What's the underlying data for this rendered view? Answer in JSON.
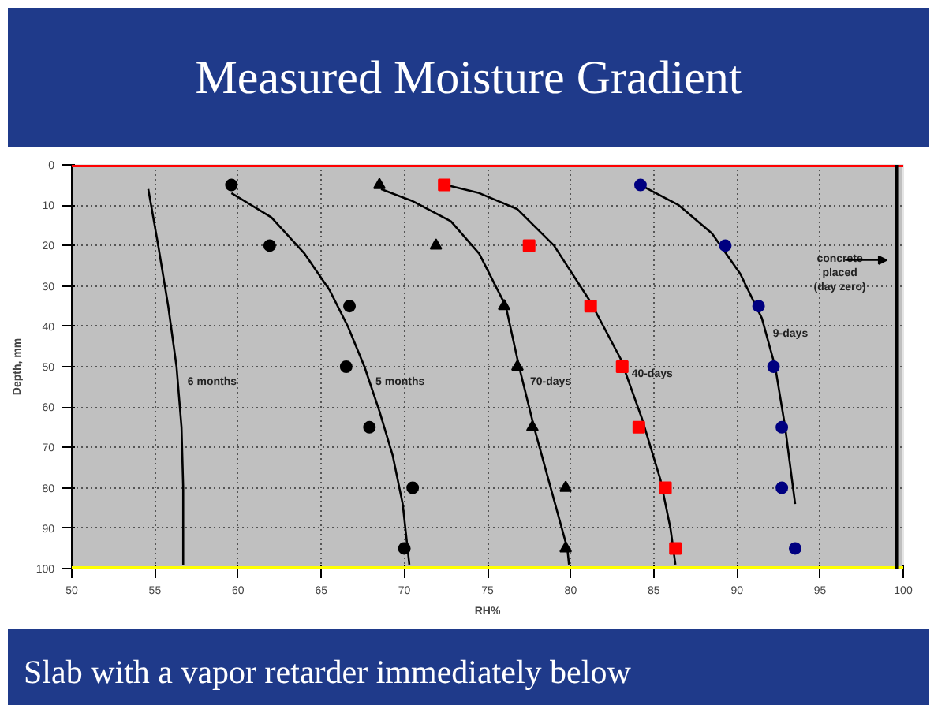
{
  "chart_data": {
    "type": "scatter",
    "title": "Measured Moisture Gradient",
    "xlabel": "RH%",
    "ylabel": "Depth, mm",
    "xlim": [
      50,
      100
    ],
    "ylim": [
      100,
      0
    ],
    "xticks": [
      50,
      55,
      60,
      65,
      70,
      75,
      80,
      85,
      90,
      95,
      100
    ],
    "yticks": [
      0,
      10,
      20,
      30,
      40,
      50,
      60,
      70,
      80,
      90,
      100
    ],
    "grid": true,
    "legend": false,
    "series": [
      {
        "type": "line",
        "name": "6 months",
        "color": "#000000",
        "marker": "none",
        "x": [
          54.6,
          55.2,
          55.8,
          56.3,
          56.6,
          56.7,
          56.7
        ],
        "values": [
          6,
          20,
          35,
          50,
          65,
          80,
          99
        ]
      },
      {
        "type": "line",
        "name": "5 months",
        "color": "#000000",
        "marker": "none",
        "x": [
          59.6,
          62,
          64,
          65.5,
          66.6,
          67.6,
          68.5,
          69.3,
          69.9,
          70.3
        ],
        "values": [
          7,
          13,
          22,
          31,
          40,
          50,
          61,
          72,
          84,
          99
        ]
      },
      {
        "type": "line",
        "name": "70-days",
        "color": "#000000",
        "marker": "none",
        "x": [
          68.6,
          70.5,
          72.8,
          74.5,
          76.1,
          76.9,
          77.8,
          78.8,
          79.8,
          79.9
        ],
        "values": [
          6,
          9,
          14,
          22,
          35,
          50,
          65,
          80,
          95,
          99
        ]
      },
      {
        "type": "line",
        "name": "40-days",
        "color": "#000000",
        "marker": "none",
        "x": [
          72.5,
          74.5,
          76.8,
          79,
          81.2,
          83,
          84.3,
          85.4,
          86,
          86.3
        ],
        "values": [
          5,
          7,
          11,
          20,
          34,
          48,
          63,
          78,
          90,
          99
        ]
      },
      {
        "type": "line",
        "name": "9-days",
        "color": "#000000",
        "marker": "none",
        "x": [
          84.2,
          86.5,
          88.5,
          90.2,
          91.5,
          92.3,
          92.9,
          93.5
        ],
        "values": [
          5,
          10,
          17,
          27,
          38,
          50,
          65,
          84
        ]
      },
      {
        "color": "#000000",
        "marker": "circle",
        "x": [
          59.6,
          61.9,
          66.7,
          66.5,
          67.9,
          70.5,
          70
        ],
        "values": [
          5,
          20,
          35,
          50,
          65,
          80,
          95
        ]
      },
      {
        "color": "#000000",
        "marker": "triangle",
        "x": [
          68.5,
          71.9,
          76,
          76.8,
          77.7,
          79.7,
          79.7
        ],
        "values": [
          5,
          20,
          35,
          50,
          65,
          80,
          95
        ]
      },
      {
        "color": "#ff0000",
        "marker": "square",
        "x": [
          72.4,
          77.5,
          81.2,
          83.1,
          84.1,
          85.7,
          86.3
        ],
        "values": [
          5,
          20,
          35,
          50,
          65,
          80,
          95
        ]
      },
      {
        "color": "#000080",
        "marker": "circle",
        "x": [
          84.2,
          89.3,
          91.3,
          92.2,
          92.7,
          92.7,
          93.5
        ],
        "values": [
          5,
          20,
          35,
          50,
          65,
          80,
          95
        ]
      }
    ],
    "ref_lines": [
      {
        "axis": "y",
        "value": 0,
        "color": "#ff0000"
      },
      {
        "axis": "y",
        "value": 100,
        "color": "#ffff00"
      },
      {
        "axis": "x",
        "value": 99.6,
        "color": "#000000",
        "label": "concrete\nplaced\n(day zero)"
      }
    ],
    "annotations": [
      "Slab with a vapor retarder immediately below"
    ]
  }
}
